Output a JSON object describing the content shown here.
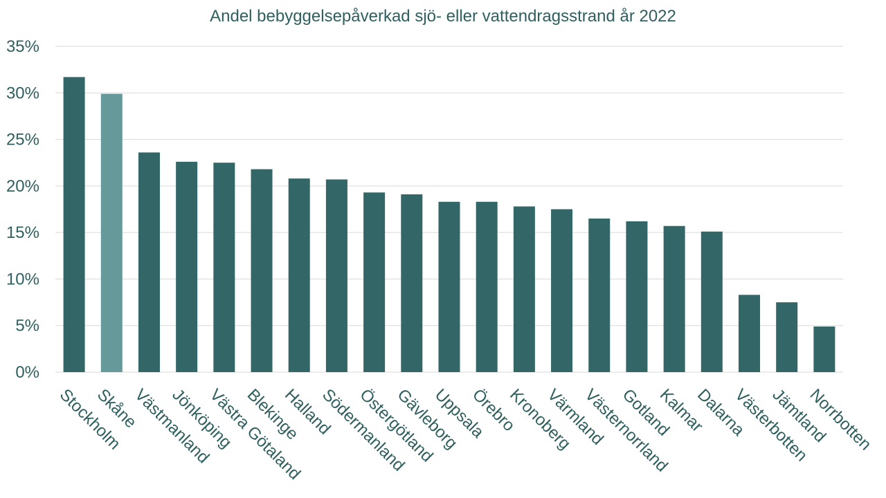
{
  "chart_data": {
    "type": "bar",
    "title": "Andel bebyggelsepåverkad sjö- eller vattendragsstrand år 2022",
    "xlabel": "",
    "ylabel": "",
    "ylim": [
      0,
      35
    ],
    "y_ticks": [
      "0%",
      "5%",
      "10%",
      "15%",
      "20%",
      "25%",
      "30%",
      "35%"
    ],
    "grid": true,
    "categories": [
      "Stockholm",
      "Skåne",
      "Västmanland",
      "Jönköping",
      "Västra Götaland",
      "Blekinge",
      "Halland",
      "Södermanland",
      "Östergötland",
      "Gävleborg",
      "Uppsala",
      "Örebro",
      "Kronoberg",
      "Värmland",
      "Västernorrland",
      "Gotland",
      "Kalmar",
      "Dalarna",
      "Västerbotten",
      "Jämtland",
      "Norrbotten"
    ],
    "values": [
      31.7,
      29.9,
      23.6,
      22.6,
      22.5,
      21.8,
      20.8,
      20.7,
      19.3,
      19.1,
      18.3,
      18.3,
      17.8,
      17.5,
      16.5,
      16.2,
      15.7,
      15.1,
      8.3,
      7.5,
      4.9
    ],
    "colors": {
      "default": "#336666",
      "highlight": "#669999",
      "text": "#2f5f5f",
      "grid": "#d9d9d9"
    },
    "highlight_category": "Skåne"
  }
}
